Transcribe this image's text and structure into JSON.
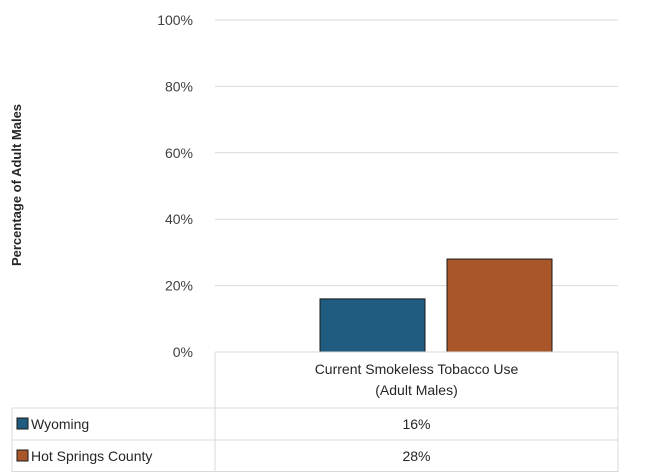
{
  "chart_data": {
    "type": "bar",
    "title": "",
    "xlabel": "",
    "ylabel": "Percentage  of Adult Males",
    "categories": [
      [
        "Current Smokeless Tobacco Use",
        "(Adult Males)"
      ]
    ],
    "yticks": [
      "0%",
      "20%",
      "40%",
      "60%",
      "80%",
      "100%"
    ],
    "ylim": [
      0,
      100
    ],
    "grid": true,
    "legend": "data-table",
    "series": [
      {
        "name": "Wyoming",
        "values": [
          16
        ],
        "label": "16%",
        "color": "#1f5c80"
      },
      {
        "name": "Hot Springs County",
        "values": [
          28
        ],
        "label": "28%",
        "color": "#a9562a"
      }
    ]
  }
}
